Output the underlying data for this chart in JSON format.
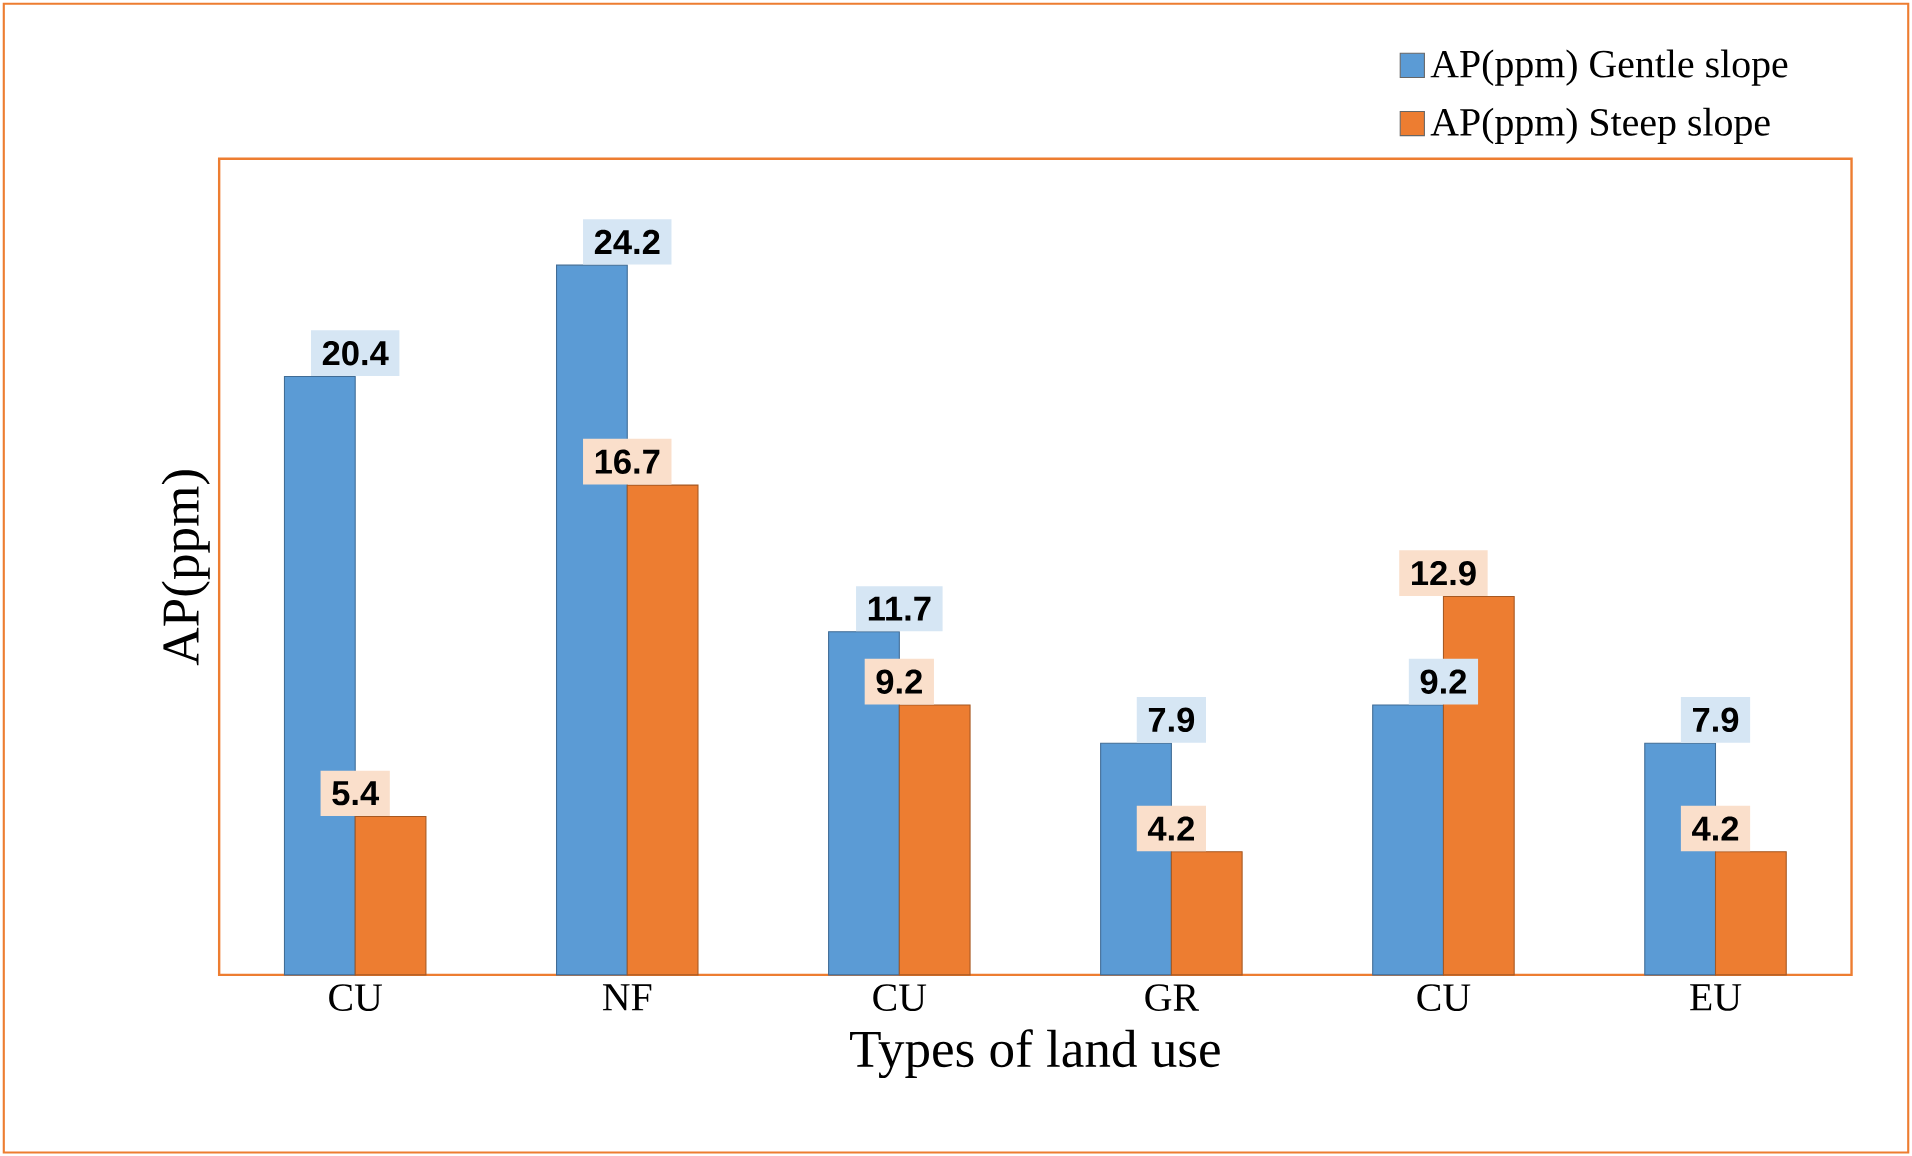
{
  "chart_data": {
    "type": "bar",
    "xlabel": "Types of land use",
    "ylabel": "AP(ppm)",
    "categories": [
      "CU",
      "NF",
      "CU",
      "GR",
      "CU",
      "EU"
    ],
    "series": [
      {
        "name": "AP(ppm) Gentle slope",
        "color": "#5b9bd5",
        "values": [
          20.4,
          24.2,
          11.7,
          7.9,
          9.2,
          7.9
        ]
      },
      {
        "name": "AP(ppm) Steep slope",
        "color": "#ed7d31",
        "values": [
          5.4,
          16.7,
          9.2,
          4.2,
          12.9,
          4.2
        ]
      }
    ],
    "relative": false,
    "data_labels": true,
    "legend": "top right"
  }
}
